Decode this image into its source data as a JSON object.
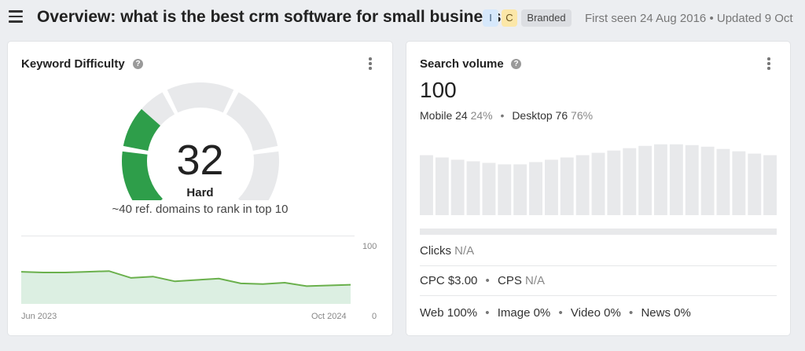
{
  "header": {
    "title": "Overview: what is the best crm software for small business",
    "badges": {
      "i": "I",
      "c": "C",
      "branded": "Branded"
    },
    "meta": "First seen 24 Aug 2016 • Updated 9 Oct"
  },
  "kd_card": {
    "title": "Keyword Difficulty",
    "help": "?",
    "value": "32",
    "label": "Hard",
    "sub": "~40 ref. domains to rank in top 10",
    "axis": {
      "y_max": "100",
      "y_min": "0",
      "x_start": "Jun 2023",
      "x_end": "Oct 2024"
    },
    "gauge_level": 32,
    "colors": {
      "gauge_green": "#2e9e4a",
      "gauge_track": "#e8e9eb",
      "line": "#6ab04c",
      "area": "#dcefe2"
    }
  },
  "sv_card": {
    "title": "Search volume",
    "help": "?",
    "value": "100",
    "mobile_label": "Mobile 24",
    "mobile_pct": "24%",
    "desktop_label": "Desktop 76",
    "desktop_pct": "76%",
    "bullet": "•",
    "clicks_label": "Clicks",
    "clicks_value": "N/A",
    "cpc_label": "CPC $3.00",
    "cps_label": "CPS",
    "cps_value": "N/A",
    "web": "Web 100%",
    "image": "Image 0%",
    "video": "Video 0%",
    "news": "News 0%"
  },
  "chart_data": [
    {
      "type": "area",
      "xlabel": "",
      "ylabel": "",
      "x_labels": [
        "Jun 2023",
        "Oct 2024"
      ],
      "ylim": [
        0,
        100
      ],
      "series": [
        {
          "values": [
            47,
            46,
            46,
            47,
            48,
            38,
            40,
            33,
            35,
            37,
            30,
            29,
            31,
            26,
            27,
            28
          ]
        }
      ]
    },
    {
      "type": "bar",
      "series": [
        {
          "values": [
            78,
            75,
            72,
            70,
            68,
            66,
            66,
            69,
            72,
            75,
            78,
            81,
            84,
            87,
            90,
            92,
            92,
            91,
            89,
            86,
            83,
            80,
            78
          ]
        }
      ],
      "ylim": [
        0,
        100
      ]
    }
  ]
}
